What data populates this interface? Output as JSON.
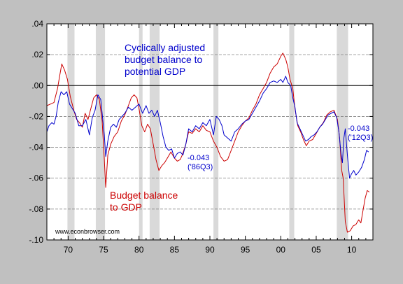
{
  "chart_data": {
    "type": "line",
    "title": "",
    "xlabel": "",
    "ylabel": "",
    "xlim": [
      1967,
      2013
    ],
    "ylim": [
      -0.1,
      0.04
    ],
    "grid": true,
    "legend": "none",
    "x_ticks": [
      {
        "value": 1970,
        "label": "70"
      },
      {
        "value": 1975,
        "label": "75"
      },
      {
        "value": 1980,
        "label": "80"
      },
      {
        "value": 1985,
        "label": "85"
      },
      {
        "value": 1990,
        "label": "90"
      },
      {
        "value": 1995,
        "label": "95"
      },
      {
        "value": 2000,
        "label": "00"
      },
      {
        "value": 2005,
        "label": "05"
      },
      {
        "value": 2010,
        "label": "10"
      }
    ],
    "y_ticks": [
      {
        "value": 0.04,
        "label": ".04"
      },
      {
        "value": 0.02,
        "label": ".02"
      },
      {
        "value": 0.0,
        "label": ".00"
      },
      {
        "value": -0.02,
        "label": "-.02"
      },
      {
        "value": -0.04,
        "label": "-.04"
      },
      {
        "value": -0.06,
        "label": "-.06"
      },
      {
        "value": -0.08,
        "label": "-.08"
      },
      {
        "value": -0.1,
        "label": "-.10"
      }
    ],
    "recessions": [
      [
        1969.9,
        1970.9
      ],
      [
        1973.9,
        1975.2
      ],
      [
        1980.0,
        1980.5
      ],
      [
        1981.5,
        1982.9
      ],
      [
        1990.5,
        1991.2
      ],
      [
        2001.2,
        2001.9
      ],
      [
        2007.9,
        2009.5
      ]
    ],
    "series": [
      {
        "key": "budget_balance",
        "color": "#cc0000",
        "points": [
          [
            1967.0,
            -0.013
          ],
          [
            1967.5,
            -0.012
          ],
          [
            1968.0,
            -0.011
          ],
          [
            1968.5,
            -0.002
          ],
          [
            1968.8,
            0.006
          ],
          [
            1969.1,
            0.014
          ],
          [
            1969.5,
            0.01
          ],
          [
            1969.9,
            0.004
          ],
          [
            1970.3,
            -0.007
          ],
          [
            1970.8,
            -0.016
          ],
          [
            1971.2,
            -0.022
          ],
          [
            1971.6,
            -0.024
          ],
          [
            1972.0,
            -0.027
          ],
          [
            1972.4,
            -0.018
          ],
          [
            1972.8,
            -0.022
          ],
          [
            1973.2,
            -0.015
          ],
          [
            1973.6,
            -0.008
          ],
          [
            1974.0,
            -0.006
          ],
          [
            1974.4,
            -0.009
          ],
          [
            1974.8,
            -0.023
          ],
          [
            1975.1,
            -0.048
          ],
          [
            1975.3,
            -0.066
          ],
          [
            1975.6,
            -0.045
          ],
          [
            1976.0,
            -0.038
          ],
          [
            1976.5,
            -0.033
          ],
          [
            1977.0,
            -0.03
          ],
          [
            1977.5,
            -0.023
          ],
          [
            1978.0,
            -0.019
          ],
          [
            1978.5,
            -0.013
          ],
          [
            1978.9,
            -0.008
          ],
          [
            1979.3,
            -0.006
          ],
          [
            1979.7,
            -0.008
          ],
          [
            1980.0,
            -0.015
          ],
          [
            1980.4,
            -0.026
          ],
          [
            1980.8,
            -0.03
          ],
          [
            1981.2,
            -0.025
          ],
          [
            1981.6,
            -0.028
          ],
          [
            1982.0,
            -0.038
          ],
          [
            1982.4,
            -0.048
          ],
          [
            1982.8,
            -0.055
          ],
          [
            1983.2,
            -0.052
          ],
          [
            1983.6,
            -0.05
          ],
          [
            1984.0,
            -0.047
          ],
          [
            1984.5,
            -0.043
          ],
          [
            1985.0,
            -0.047
          ],
          [
            1985.4,
            -0.049
          ],
          [
            1985.8,
            -0.048
          ],
          [
            1986.1,
            -0.045
          ],
          [
            1986.6,
            -0.038
          ],
          [
            1987.0,
            -0.03
          ],
          [
            1987.5,
            -0.031
          ],
          [
            1988.0,
            -0.028
          ],
          [
            1988.5,
            -0.03
          ],
          [
            1989.0,
            -0.026
          ],
          [
            1989.5,
            -0.029
          ],
          [
            1990.0,
            -0.03
          ],
          [
            1990.5,
            -0.036
          ],
          [
            1991.0,
            -0.04
          ],
          [
            1991.5,
            -0.046
          ],
          [
            1992.0,
            -0.049
          ],
          [
            1992.5,
            -0.048
          ],
          [
            1993.0,
            -0.042
          ],
          [
            1993.5,
            -0.036
          ],
          [
            1994.0,
            -0.03
          ],
          [
            1994.5,
            -0.026
          ],
          [
            1995.0,
            -0.023
          ],
          [
            1995.5,
            -0.021
          ],
          [
            1996.0,
            -0.016
          ],
          [
            1996.5,
            -0.012
          ],
          [
            1997.0,
            -0.006
          ],
          [
            1997.5,
            -0.002
          ],
          [
            1998.0,
            0.002
          ],
          [
            1998.5,
            0.008
          ],
          [
            1999.0,
            0.012
          ],
          [
            1999.5,
            0.014
          ],
          [
            2000.0,
            0.019
          ],
          [
            2000.3,
            0.021
          ],
          [
            2000.7,
            0.017
          ],
          [
            2001.0,
            0.012
          ],
          [
            2001.3,
            0.004
          ],
          [
            2001.7,
            -0.002
          ],
          [
            2002.0,
            -0.015
          ],
          [
            2002.4,
            -0.026
          ],
          [
            2002.8,
            -0.03
          ],
          [
            2003.2,
            -0.035
          ],
          [
            2003.6,
            -0.039
          ],
          [
            2004.0,
            -0.036
          ],
          [
            2004.5,
            -0.035
          ],
          [
            2005.0,
            -0.031
          ],
          [
            2005.5,
            -0.027
          ],
          [
            2006.0,
            -0.024
          ],
          [
            2006.5,
            -0.019
          ],
          [
            2007.0,
            -0.017
          ],
          [
            2007.5,
            -0.016
          ],
          [
            2008.0,
            -0.022
          ],
          [
            2008.3,
            -0.034
          ],
          [
            2008.6,
            -0.055
          ],
          [
            2008.8,
            -0.06
          ],
          [
            2009.1,
            -0.088
          ],
          [
            2009.4,
            -0.095
          ],
          [
            2009.8,
            -0.094
          ],
          [
            2010.2,
            -0.091
          ],
          [
            2010.6,
            -0.09
          ],
          [
            2011.0,
            -0.087
          ],
          [
            2011.3,
            -0.089
          ],
          [
            2011.6,
            -0.081
          ],
          [
            2011.9,
            -0.073
          ],
          [
            2012.2,
            -0.068
          ],
          [
            2012.5,
            -0.069
          ]
        ]
      },
      {
        "key": "cyclically_adjusted",
        "color": "#0000cc",
        "points": [
          [
            1967.0,
            -0.03
          ],
          [
            1967.3,
            -0.026
          ],
          [
            1967.7,
            -0.024
          ],
          [
            1968.0,
            -0.025
          ],
          [
            1968.3,
            -0.02
          ],
          [
            1968.6,
            -0.011
          ],
          [
            1969.0,
            -0.004
          ],
          [
            1969.4,
            -0.006
          ],
          [
            1969.8,
            -0.004
          ],
          [
            1970.2,
            -0.012
          ],
          [
            1970.6,
            -0.015
          ],
          [
            1971.0,
            -0.018
          ],
          [
            1971.5,
            -0.026
          ],
          [
            1972.0,
            -0.026
          ],
          [
            1972.5,
            -0.022
          ],
          [
            1973.0,
            -0.032
          ],
          [
            1973.4,
            -0.021
          ],
          [
            1973.8,
            -0.016
          ],
          [
            1974.2,
            -0.006
          ],
          [
            1974.6,
            -0.009
          ],
          [
            1975.1,
            -0.032
          ],
          [
            1975.3,
            -0.046
          ],
          [
            1975.6,
            -0.036
          ],
          [
            1976.0,
            -0.027
          ],
          [
            1976.4,
            -0.025
          ],
          [
            1976.8,
            -0.027
          ],
          [
            1977.2,
            -0.022
          ],
          [
            1977.6,
            -0.02
          ],
          [
            1978.0,
            -0.018
          ],
          [
            1978.5,
            -0.014
          ],
          [
            1979.0,
            -0.016
          ],
          [
            1979.5,
            -0.014
          ],
          [
            1980.0,
            -0.012
          ],
          [
            1980.5,
            -0.018
          ],
          [
            1981.0,
            -0.013
          ],
          [
            1981.4,
            -0.018
          ],
          [
            1981.8,
            -0.016
          ],
          [
            1982.2,
            -0.02
          ],
          [
            1982.6,
            -0.016
          ],
          [
            1983.0,
            -0.024
          ],
          [
            1983.4,
            -0.033
          ],
          [
            1983.8,
            -0.04
          ],
          [
            1984.2,
            -0.042
          ],
          [
            1984.6,
            -0.041
          ],
          [
            1985.0,
            -0.047
          ],
          [
            1985.4,
            -0.044
          ],
          [
            1985.8,
            -0.043
          ],
          [
            1986.2,
            -0.045
          ],
          [
            1986.6,
            -0.038
          ],
          [
            1987.0,
            -0.028
          ],
          [
            1987.5,
            -0.03
          ],
          [
            1988.0,
            -0.026
          ],
          [
            1988.5,
            -0.028
          ],
          [
            1989.0,
            -0.024
          ],
          [
            1989.5,
            -0.026
          ],
          [
            1990.0,
            -0.022
          ],
          [
            1990.5,
            -0.032
          ],
          [
            1990.9,
            -0.02
          ],
          [
            1991.3,
            -0.022
          ],
          [
            1991.7,
            -0.026
          ],
          [
            1992.0,
            -0.032
          ],
          [
            1992.5,
            -0.034
          ],
          [
            1993.0,
            -0.036
          ],
          [
            1993.5,
            -0.03
          ],
          [
            1994.0,
            -0.028
          ],
          [
            1994.5,
            -0.025
          ],
          [
            1995.0,
            -0.023
          ],
          [
            1995.5,
            -0.022
          ],
          [
            1996.0,
            -0.018
          ],
          [
            1996.5,
            -0.014
          ],
          [
            1997.0,
            -0.01
          ],
          [
            1997.5,
            -0.005
          ],
          [
            1998.0,
            -0.002
          ],
          [
            1998.5,
            0.002
          ],
          [
            1999.0,
            0.003
          ],
          [
            1999.5,
            0.002
          ],
          [
            2000.0,
            0.004
          ],
          [
            2000.3,
            0.002
          ],
          [
            2000.7,
            0.006
          ],
          [
            2001.0,
            0.002
          ],
          [
            2001.4,
            0.0
          ],
          [
            2001.7,
            -0.008
          ],
          [
            2002.0,
            -0.014
          ],
          [
            2002.3,
            -0.024
          ],
          [
            2002.7,
            -0.028
          ],
          [
            2003.1,
            -0.032
          ],
          [
            2003.5,
            -0.036
          ],
          [
            2003.9,
            -0.035
          ],
          [
            2004.3,
            -0.033
          ],
          [
            2004.7,
            -0.032
          ],
          [
            2005.1,
            -0.03
          ],
          [
            2005.5,
            -0.027
          ],
          [
            2005.9,
            -0.025
          ],
          [
            2006.3,
            -0.022
          ],
          [
            2006.7,
            -0.019
          ],
          [
            2007.1,
            -0.018
          ],
          [
            2007.5,
            -0.017
          ],
          [
            2007.9,
            -0.021
          ],
          [
            2008.2,
            -0.03
          ],
          [
            2008.5,
            -0.044
          ],
          [
            2008.7,
            -0.05
          ],
          [
            2008.9,
            -0.034
          ],
          [
            2009.1,
            -0.028
          ],
          [
            2009.4,
            -0.045
          ],
          [
            2009.7,
            -0.06
          ],
          [
            2010.0,
            -0.057
          ],
          [
            2010.3,
            -0.055
          ],
          [
            2010.6,
            -0.058
          ],
          [
            2011.0,
            -0.056
          ],
          [
            2011.4,
            -0.053
          ],
          [
            2011.8,
            -0.048
          ],
          [
            2012.1,
            -0.042
          ],
          [
            2012.4,
            -0.043
          ]
        ]
      }
    ],
    "annotations": [
      {
        "key": "cyclical_label",
        "lines": [
          "Cyclically adjusted",
          "budget balance to",
          "potential GDP"
        ],
        "color": "#0000cc"
      },
      {
        "key": "budget_label",
        "lines": [
          "Budget balance",
          "to GDP"
        ],
        "color": "#cc0000"
      },
      {
        "key": "value_86",
        "lines": [
          "-0.043",
          "('86Q3)"
        ],
        "color": "#0000cc"
      },
      {
        "key": "value_12",
        "lines": [
          "-0.043",
          "('12Q3)"
        ],
        "color": "#0000cc"
      }
    ],
    "watermark": "www.econbrowser.com"
  }
}
